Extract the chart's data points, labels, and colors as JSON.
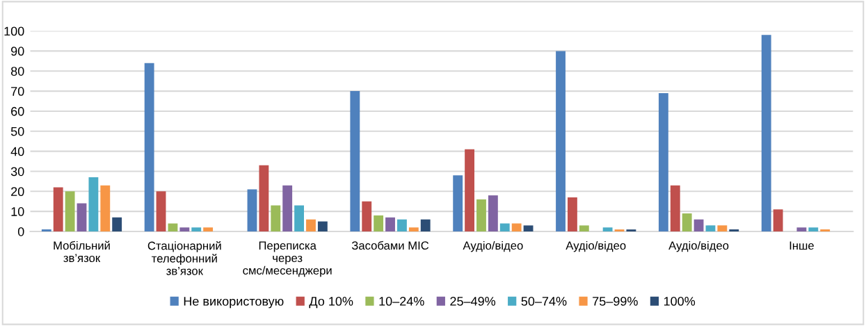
{
  "chart_data": {
    "type": "bar",
    "categories": [
      "Мобільний\nзв’язок",
      "Стаціонарний\nтелефонний\nзв’язок",
      "Переписка\nчерез\nсмс/месенджери",
      "Засобами МІС",
      "Аудіо/відео",
      "Аудіо/відео",
      "Аудіо/відео",
      "Інше"
    ],
    "series": [
      {
        "name": "Не використовую",
        "color": "#4f81bd",
        "values": [
          1,
          84,
          21,
          70,
          28,
          90,
          69,
          98
        ]
      },
      {
        "name": "До 10%",
        "color": "#c0504d",
        "values": [
          22,
          20,
          33,
          15,
          41,
          17,
          23,
          11
        ]
      },
      {
        "name": "10–24%",
        "color": "#9bbb59",
        "values": [
          20,
          4,
          13,
          8,
          16,
          3,
          9,
          0
        ]
      },
      {
        "name": "25–49%",
        "color": "#8064a2",
        "values": [
          14,
          2,
          23,
          7,
          18,
          0,
          6,
          2
        ]
      },
      {
        "name": "50–74%",
        "color": "#4bacc6",
        "values": [
          27,
          2,
          13,
          6,
          4,
          2,
          3,
          2
        ]
      },
      {
        "name": "75–99%",
        "color": "#f79646",
        "values": [
          23,
          2,
          6,
          2,
          4,
          1,
          3,
          1
        ]
      },
      {
        "name": "100%",
        "color": "#2c4d75",
        "values": [
          7,
          0,
          5,
          6,
          3,
          1,
          1,
          0
        ]
      }
    ],
    "ylim": [
      0,
      100
    ],
    "yticks": [
      0,
      10,
      20,
      30,
      40,
      50,
      60,
      70,
      80,
      90,
      100
    ],
    "grid": "y",
    "legend": "bottom"
  }
}
